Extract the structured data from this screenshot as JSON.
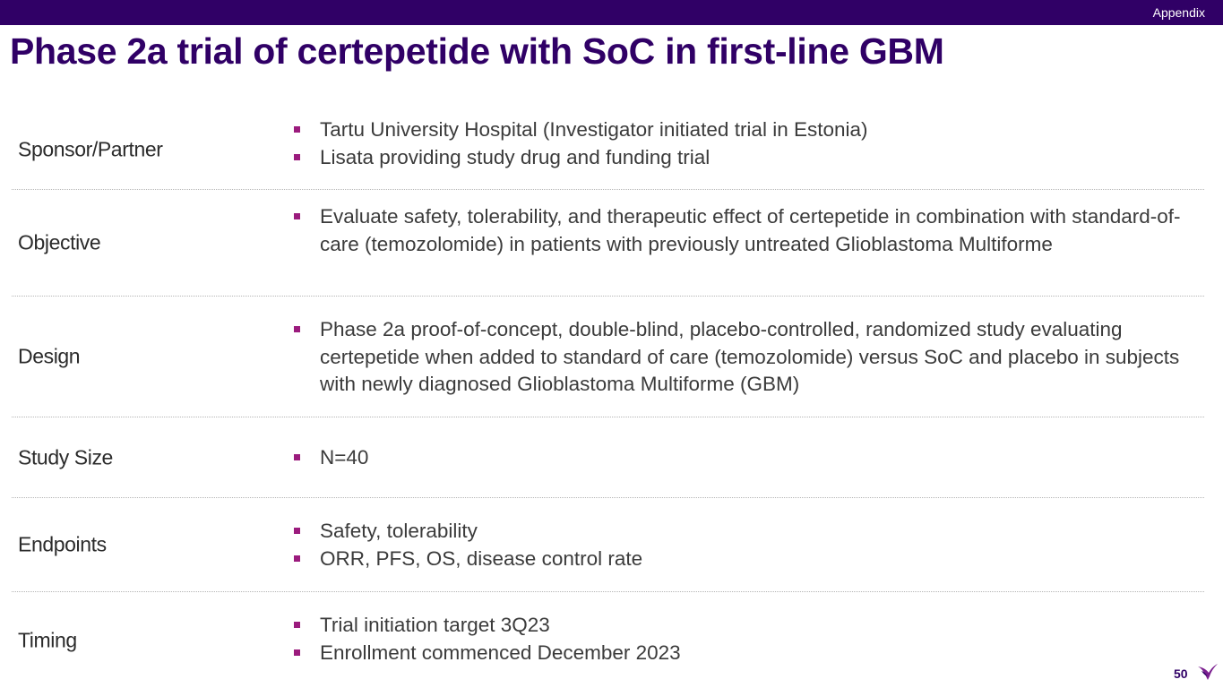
{
  "header": {
    "section_tag": "Appendix"
  },
  "title": "Phase 2a trial of certepetide with SoC in first-line GBM",
  "rows": [
    {
      "label": "Sponsor/Partner",
      "bullets": [
        "Tartu University Hospital (Investigator initiated trial in Estonia)",
        "Lisata providing study drug and funding trial"
      ]
    },
    {
      "label": "Objective",
      "bullets": [
        "Evaluate safety, tolerability, and therapeutic effect of certepetide in combination with standard-of-care (temozolomide) in patients with previously untreated Glioblastoma Multiforme"
      ]
    },
    {
      "label": "Design",
      "bullets": [
        "Phase 2a proof-of-concept, double-blind, placebo-controlled, randomized study evaluating certepetide when added to standard of care (temozolomide) versus SoC and placebo in subjects with newly diagnosed Glioblastoma Multiforme (GBM)"
      ]
    },
    {
      "label": "Study Size",
      "bullets": [
        "N=40"
      ]
    },
    {
      "label": "Endpoints",
      "bullets": [
        "Safety, tolerability",
        "ORR, PFS, OS, disease control rate"
      ]
    },
    {
      "label": "Timing",
      "bullets": [
        "Trial initiation target 3Q23",
        "Enrollment commenced December 2023"
      ]
    }
  ],
  "footer": {
    "page_number": "50",
    "logo_icon": "lisata-bird-logo-icon"
  },
  "colors": {
    "brand": "#300066",
    "bullet": "#9b1b7d"
  }
}
